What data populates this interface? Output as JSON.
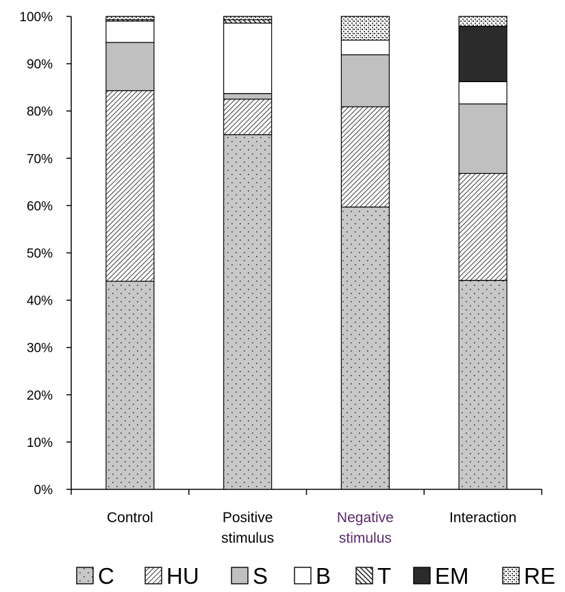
{
  "chart_data": {
    "type": "bar",
    "stacked": true,
    "normalized": true,
    "categories": [
      [
        "Control"
      ],
      [
        "Positive",
        "stimulus"
      ],
      [
        "Negative",
        "stimulus"
      ],
      [
        "Interaction"
      ]
    ],
    "series": [
      {
        "name": "C",
        "pattern": "dots",
        "values": [
          44.0,
          75.0,
          59.7,
          44.2
        ]
      },
      {
        "name": "HU",
        "pattern": "diag-dense",
        "values": [
          40.3,
          7.5,
          21.2,
          22.6
        ]
      },
      {
        "name": "S",
        "pattern": "gray",
        "values": [
          10.2,
          1.2,
          11.0,
          14.7
        ]
      },
      {
        "name": "B",
        "pattern": "white",
        "values": [
          4.5,
          14.9,
          3.1,
          4.7
        ]
      },
      {
        "name": "T",
        "pattern": "diag-bold",
        "values": [
          0.3,
          0.7,
          0.0,
          0.0
        ]
      },
      {
        "name": "EM",
        "pattern": "black",
        "values": [
          0.0,
          0.0,
          0.0,
          11.7
        ]
      },
      {
        "name": "RE",
        "pattern": "stipple",
        "values": [
          0.7,
          0.7,
          5.0,
          2.1
        ]
      }
    ],
    "yticks": [
      "0%",
      "10%",
      "20%",
      "30%",
      "40%",
      "50%",
      "60%",
      "70%",
      "80%",
      "90%",
      "100%"
    ],
    "ylim": [
      0,
      100
    ],
    "legend_position": "bottom",
    "grid": false,
    "colors": {
      "gray": "#c0c0c0",
      "black": "#2b2b2b",
      "white": "#ffffff",
      "axis": "#000000"
    }
  }
}
